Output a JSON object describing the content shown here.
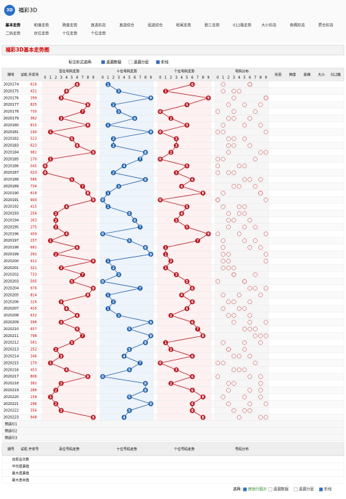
{
  "header": {
    "logo": "福彩3D",
    "nav": [
      [
        "基本走势",
        "和值走势",
        "跨度走势",
        "直选形态",
        "直选综合",
        "组选综合",
        "和尾走势",
        "胆三走势",
        "012路走势",
        "大小形态",
        "奇偶形态",
        "质合形态"
      ],
      [
        "二码走势",
        "百位走势",
        "十位走势",
        "个位走势"
      ]
    ]
  },
  "title": "福彩3D基本走势图",
  "options": {
    "label": "标注形式选择:",
    "items": [
      "遗漏数据",
      "遗漏分层",
      "折线"
    ]
  },
  "table": {
    "headers": [
      "期号",
      "试机",
      "开奖号"
    ],
    "zones": [
      "百位号码走势",
      "十位号码走势",
      "个位号码走势",
      "号码分布"
    ],
    "digit_labels": [
      "0",
      "1",
      "2",
      "3",
      "4",
      "5",
      "6",
      "7",
      "8",
      "9"
    ],
    "right_headers": [
      "形态",
      "跨度",
      "奇偶",
      "大小",
      "012路"
    ],
    "rows": [
      {
        "issue": "2020174",
        "number": "616",
        "digits": [
          6,
          1,
          6
        ]
      },
      {
        "issue": "2020175",
        "number": "431",
        "digits": [
          4,
          3,
          1
        ]
      },
      {
        "issue": "2020176",
        "number": "399",
        "digits": [
          3,
          9,
          9
        ]
      },
      {
        "issue": "2020177",
        "number": "825",
        "digits": [
          8,
          2,
          5
        ]
      },
      {
        "issue": "2020178",
        "number": "730",
        "digits": [
          7,
          3,
          0
        ]
      },
      {
        "issue": "2020179",
        "number": "362",
        "digits": [
          3,
          6,
          2
        ]
      },
      {
        "issue": "2020180",
        "number": "815",
        "digits": [
          8,
          1,
          5
        ]
      },
      {
        "issue": "2020181",
        "number": "190",
        "digits": [
          1,
          9,
          0
        ]
      },
      {
        "issue": "2020182",
        "number": "523",
        "digits": [
          5,
          2,
          3
        ]
      },
      {
        "issue": "2020183",
        "number": "623",
        "digits": [
          6,
          2,
          3
        ]
      },
      {
        "issue": "2020184",
        "number": "982",
        "digits": [
          9,
          8,
          2
        ]
      },
      {
        "issue": "2020185",
        "number": "170",
        "digits": [
          1,
          7,
          0
        ]
      },
      {
        "issue": "2020186",
        "number": "045",
        "digits": [
          0,
          4,
          5
        ]
      },
      {
        "issue": "2020187",
        "number": "023",
        "digits": [
          0,
          2,
          3
        ]
      },
      {
        "issue": "2020188",
        "number": "586",
        "digits": [
          5,
          8,
          6
        ]
      },
      {
        "issue": "2020189",
        "number": "734",
        "digits": [
          7,
          3,
          4
        ]
      },
      {
        "issue": "2020190",
        "number": "818",
        "digits": [
          8,
          1,
          8
        ]
      },
      {
        "issue": "2020191",
        "number": "900",
        "digits": [
          9,
          0,
          0
        ]
      },
      {
        "issue": "2020192",
        "number": "415",
        "digits": [
          4,
          1,
          5
        ]
      },
      {
        "issue": "2020193",
        "number": "254",
        "digits": [
          2,
          5,
          4
        ]
      },
      {
        "issue": "2020194",
        "number": "263",
        "digits": [
          2,
          6,
          3
        ]
      },
      {
        "issue": "2020195",
        "number": "275",
        "digits": [
          2,
          7,
          5
        ]
      },
      {
        "issue": "2020196",
        "number": "409",
        "digits": [
          4,
          0,
          9
        ]
      },
      {
        "issue": "2020197",
        "number": "157",
        "digits": [
          1,
          5,
          7
        ]
      },
      {
        "issue": "2020198",
        "number": "681",
        "digits": [
          6,
          8,
          1
        ]
      },
      {
        "issue": "2020199",
        "number": "291",
        "digits": [
          2,
          9,
          1
        ]
      },
      {
        "issue": "2020200",
        "number": "912",
        "digits": [
          9,
          1,
          2
        ]
      },
      {
        "issue": "2020201",
        "number": "321",
        "digits": [
          3,
          2,
          1
        ]
      },
      {
        "issue": "2020202",
        "number": "733",
        "digits": [
          7,
          3,
          3
        ]
      },
      {
        "issue": "2020203",
        "number": "505",
        "digits": [
          5,
          0,
          5
        ]
      },
      {
        "issue": "2020204",
        "number": "976",
        "digits": [
          9,
          7,
          6
        ]
      },
      {
        "issue": "2020205",
        "number": "814",
        "digits": [
          8,
          1,
          4
        ]
      },
      {
        "issue": "2020206",
        "number": "326",
        "digits": [
          3,
          2,
          6
        ]
      },
      {
        "issue": "2020207",
        "number": "415",
        "digits": [
          4,
          1,
          5
        ]
      },
      {
        "issue": "2020208",
        "number": "632",
        "digits": [
          6,
          3,
          2
        ]
      },
      {
        "issue": "2020209",
        "number": "396",
        "digits": [
          3,
          9,
          6
        ]
      },
      {
        "issue": "2020210",
        "number": "657",
        "digits": [
          6,
          5,
          7
        ]
      },
      {
        "issue": "2020211",
        "number": "798",
        "digits": [
          7,
          9,
          8
        ]
      },
      {
        "issue": "2020212",
        "number": "581",
        "digits": [
          5,
          8,
          1
        ]
      },
      {
        "issue": "2020213",
        "number": "252",
        "digits": [
          2,
          5,
          2
        ]
      },
      {
        "issue": "2020214",
        "number": "346",
        "digits": [
          3,
          4,
          6
        ]
      },
      {
        "issue": "2020215",
        "number": "170",
        "digits": [
          1,
          7,
          0
        ]
      },
      {
        "issue": "2020216",
        "number": "453",
        "digits": [
          4,
          5,
          3
        ]
      },
      {
        "issue": "2020217",
        "number": "806",
        "digits": [
          8,
          0,
          6
        ]
      },
      {
        "issue": "2020218",
        "number": "382",
        "digits": [
          3,
          8,
          2
        ]
      },
      {
        "issue": "2020219",
        "number": "286",
        "digits": [
          2,
          8,
          6
        ]
      },
      {
        "issue": "2020220",
        "number": "158",
        "digits": [
          1,
          5,
          8
        ]
      },
      {
        "issue": "2020221",
        "number": "296",
        "digits": [
          2,
          9,
          6
        ]
      },
      {
        "issue": "2020222",
        "number": "356",
        "digits": [
          3,
          5,
          6
        ]
      },
      {
        "issue": "2020223",
        "number": "948",
        "digits": [
          9,
          4,
          8
        ]
      }
    ],
    "preselect": [
      "预选行1",
      "预选行2",
      "预选行3"
    ],
    "stats": [
      "出现总次数",
      "平均遗漏值",
      "最大遗漏值",
      "最大连出值"
    ]
  },
  "footer": {
    "label": "选择:",
    "items": [
      "原始行图示",
      "遗漏数据",
      "遗漏分层",
      "折线"
    ]
  }
}
